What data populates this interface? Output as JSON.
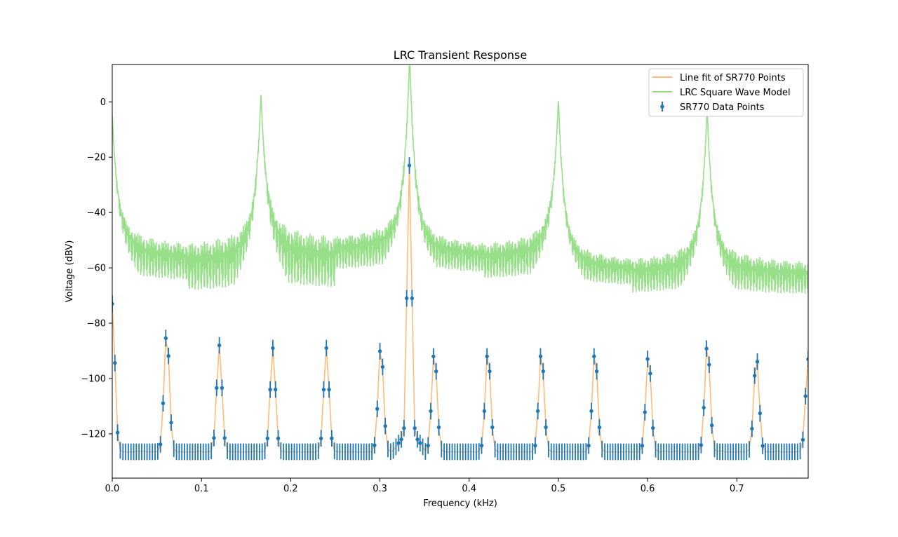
{
  "chart_data": {
    "type": "line",
    "title": "LRC Transient Response",
    "xlabel": "Frequency (kHz)",
    "ylabel": "Voltage (dBV)",
    "xlim": [
      0.0,
      0.78
    ],
    "ylim": [
      -136,
      13.5
    ],
    "x_ticks": [
      0.0,
      0.1,
      0.2,
      0.3,
      0.4,
      0.5,
      0.6,
      0.7
    ],
    "x_tick_labels": [
      "0.0",
      "0.1",
      "0.2",
      "0.3",
      "0.4",
      "0.5",
      "0.6",
      "0.7"
    ],
    "y_ticks": [
      0,
      -20,
      -40,
      -60,
      -80,
      -100,
      -120
    ],
    "y_tick_labels": [
      "0",
      "−20",
      "−40",
      "−60",
      "−80",
      "−100",
      "−120"
    ],
    "grid": false,
    "legend_position": "top-right",
    "legend": [
      {
        "label": "Line fit of SR770 Points",
        "color": "#ffbb78",
        "kind": "line"
      },
      {
        "label": "LRC Square Wave Model",
        "color": "#98df8a",
        "kind": "line"
      },
      {
        "label": "SR770 Data Points",
        "color": "#1f77b4",
        "kind": "errorbar"
      }
    ],
    "series": [
      {
        "name": "LRC Square Wave Model",
        "color": "#98df8a",
        "resonances_khz": [
          0.0,
          0.1667,
          0.3333,
          0.5,
          0.6667
        ],
        "peak_dBV": [
          -15,
          -7,
          7,
          -9,
          -12
        ],
        "floor_dBV": [
          -52,
          -52,
          -47,
          -57,
          -58
        ],
        "dip_dBV": [
          -75,
          -82,
          -70,
          -74,
          -79
        ]
      },
      {
        "name": "SR770 Data Points",
        "color": "#1f77b4",
        "x_step_khz": 0.003,
        "noise_floor_dBV": -126.5,
        "error_dBV": 3,
        "peaks": [
          {
            "x": 0.0,
            "y": -73
          },
          {
            "x": 0.061,
            "y": -83
          },
          {
            "x": 0.12,
            "y": -88
          },
          {
            "x": 0.18,
            "y": -89
          },
          {
            "x": 0.24,
            "y": -89
          },
          {
            "x": 0.301,
            "y": -88
          },
          {
            "x": 0.333,
            "y": -23
          },
          {
            "x": 0.361,
            "y": -90
          },
          {
            "x": 0.421,
            "y": -90
          },
          {
            "x": 0.481,
            "y": -90
          },
          {
            "x": 0.541,
            "y": -90
          },
          {
            "x": 0.601,
            "y": -91
          },
          {
            "x": 0.667,
            "y": -87
          },
          {
            "x": 0.722,
            "y": -92
          },
          {
            "x": 0.78,
            "y": -93
          }
        ]
      },
      {
        "name": "Line fit of SR770 Points",
        "color": "#ffbb78",
        "follows": "SR770 Data Points"
      }
    ]
  }
}
